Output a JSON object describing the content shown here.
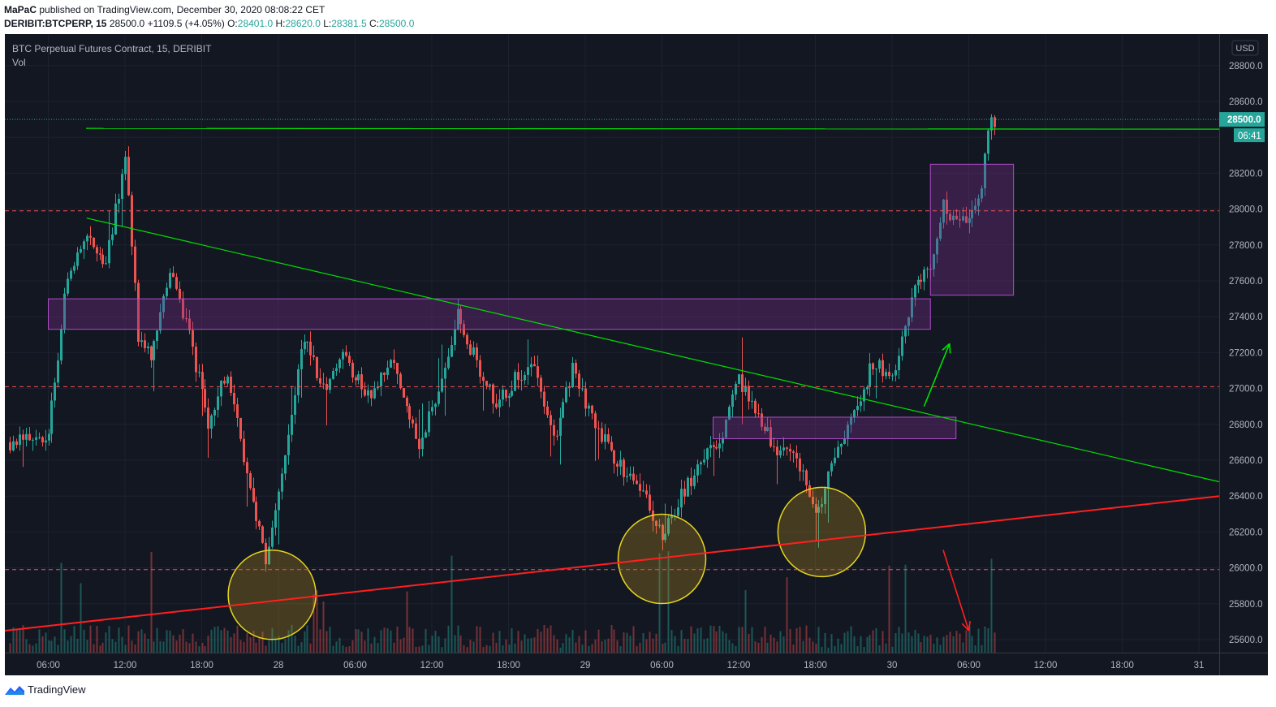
{
  "header": {
    "publisher": "MaPaC",
    "published_text": "published on TradingView.com, December 30, 2020 08:08:22 CET",
    "symbol": "DERIBIT:BTCPERP, 15",
    "last": "28500.0",
    "change": "+1109.5 (+4.05%)",
    "o_label": "O:",
    "o_value": "28401.0",
    "h_label": "H:",
    "h_value": "28620.0",
    "l_label": "L:",
    "l_value": "28381.5",
    "c_label": "C:",
    "c_value": "28500.0"
  },
  "legend": {
    "title": "BTC Perpetual Futures Contract, 15, DERIBIT",
    "vol": "Vol"
  },
  "footer": {
    "brand": "TradingView"
  },
  "colors": {
    "background": "#131722",
    "up": "#26a69a",
    "down": "#ef5350",
    "green_line": "#00e000",
    "red_line": "#ff1f1f",
    "zone_fill": "#7b2d8e",
    "circle": "#e6d61e"
  },
  "chart_data": {
    "type": "candlestick",
    "currency": "USD",
    "y_ticks": [
      25600,
      25800,
      26000,
      26200,
      26400,
      26600,
      26800,
      27000,
      27200,
      27400,
      27600,
      27800,
      28000,
      28200,
      28400,
      28600,
      28800
    ],
    "x_ticks": [
      "06:00",
      "12:00",
      "18:00",
      "28",
      "06:00",
      "12:00",
      "18:00",
      "29",
      "06:00",
      "12:00",
      "18:00",
      "30",
      "06:00",
      "12:00",
      "18:00",
      "31"
    ],
    "price_badge": "28500.0",
    "countdown_badge": "06:41",
    "price_range_start": [
      "27 Dec 03:00",
      26700
    ],
    "price_range_end": [
      "30 Dec 08:00",
      28500
    ],
    "price_path": [
      [
        "27 Dec 03:00",
        26700
      ],
      [
        "27 Dec 06:00",
        26750
      ],
      [
        "27 Dec 07:30",
        27650
      ],
      [
        "27 Dec 09:00",
        27850
      ],
      [
        "27 Dec 10:30",
        27700
      ],
      [
        "27 Dec 12:00",
        28300
      ],
      [
        "27 Dec 13:00",
        27300
      ],
      [
        "27 Dec 14:00",
        27200
      ],
      [
        "27 Dec 15:30",
        27650
      ],
      [
        "27 Dec 17:00",
        27300
      ],
      [
        "27 Dec 18:30",
        26800
      ],
      [
        "27 Dec 20:00",
        27100
      ],
      [
        "27 Dec 21:30",
        26500
      ],
      [
        "27 Dec 23:00",
        26050
      ],
      [
        "28 Dec 00:30",
        26600
      ],
      [
        "28 Dec 02:00",
        27300
      ],
      [
        "28 Dec 03:30",
        27000
      ],
      [
        "28 Dec 05:00",
        27200
      ],
      [
        "28 Dec 07:00",
        26950
      ],
      [
        "28 Dec 09:00",
        27150
      ],
      [
        "28 Dec 11:00",
        26700
      ],
      [
        "28 Dec 12:30",
        27000
      ],
      [
        "28 Dec 14:00",
        27400
      ],
      [
        "28 Dec 15:30",
        27150
      ],
      [
        "28 Dec 17:00",
        26900
      ],
      [
        "28 Dec 18:30",
        27050
      ],
      [
        "28 Dec 20:00",
        27150
      ],
      [
        "28 Dec 21:30",
        26700
      ],
      [
        "28 Dec 23:00",
        27100
      ],
      [
        "29 Dec 01:00",
        26750
      ],
      [
        "29 Dec 03:00",
        26550
      ],
      [
        "29 Dec 05:00",
        26350
      ],
      [
        "29 Dec 06:00",
        26150
      ],
      [
        "29 Dec 07:30",
        26400
      ],
      [
        "29 Dec 09:00",
        26600
      ],
      [
        "29 Dec 10:30",
        26700
      ],
      [
        "29 Dec 12:00",
        27050
      ],
      [
        "29 Dec 13:30",
        26850
      ],
      [
        "29 Dec 15:00",
        26650
      ],
      [
        "29 Dec 16:30",
        26600
      ],
      [
        "29 Dec 18:00",
        26300
      ],
      [
        "29 Dec 19:30",
        26600
      ],
      [
        "29 Dec 21:00",
        26850
      ],
      [
        "29 Dec 22:30",
        27150
      ],
      [
        "30 Dec 00:00",
        27050
      ],
      [
        "30 Dec 01:00",
        27350
      ],
      [
        "30 Dec 02:00",
        27600
      ],
      [
        "30 Dec 03:00",
        27650
      ],
      [
        "30 Dec 04:00",
        28050
      ],
      [
        "30 Dec 05:00",
        27900
      ],
      [
        "30 Dec 06:00",
        27950
      ],
      [
        "30 Dec 07:00",
        28100
      ],
      [
        "30 Dec 07:30",
        28450
      ],
      [
        "30 Dec 08:00",
        28500
      ]
    ],
    "annotations": {
      "horizontal_green": 28450,
      "dashed_levels": [
        27990,
        27010,
        25990
      ],
      "descending_trendline": [
        [
          "27 Dec 09:00",
          27950
        ],
        [
          "31 Dec 02:00",
          26480
        ]
      ],
      "ascending_trendline": [
        [
          "27 Dec 00:00",
          25650
        ],
        [
          "31 Dec 02:00",
          26400
        ]
      ],
      "zones": [
        {
          "from": "27 Dec 06:00",
          "to": "30 Dec 03:00",
          "low": 27330,
          "high": 27500
        },
        {
          "from": "29 Dec 10:00",
          "to": "30 Dec 05:00",
          "low": 26720,
          "high": 26840
        },
        {
          "from": "30 Dec 03:00",
          "to": "30 Dec 09:30",
          "low": 27520,
          "high": 28250
        }
      ],
      "circles_center": [
        [
          "27 Dec 23:30",
          25850
        ],
        [
          "29 Dec 06:00",
          26050
        ],
        [
          "29 Dec 18:30",
          26200
        ]
      ],
      "arrow_up": [
        [
          "30 Dec 02:30",
          26900
        ],
        [
          "30 Dec 04:30",
          27250
        ]
      ],
      "arrow_down": [
        [
          "30 Dec 04:00",
          26100
        ],
        [
          "30 Dec 06:00",
          25650
        ]
      ]
    }
  }
}
